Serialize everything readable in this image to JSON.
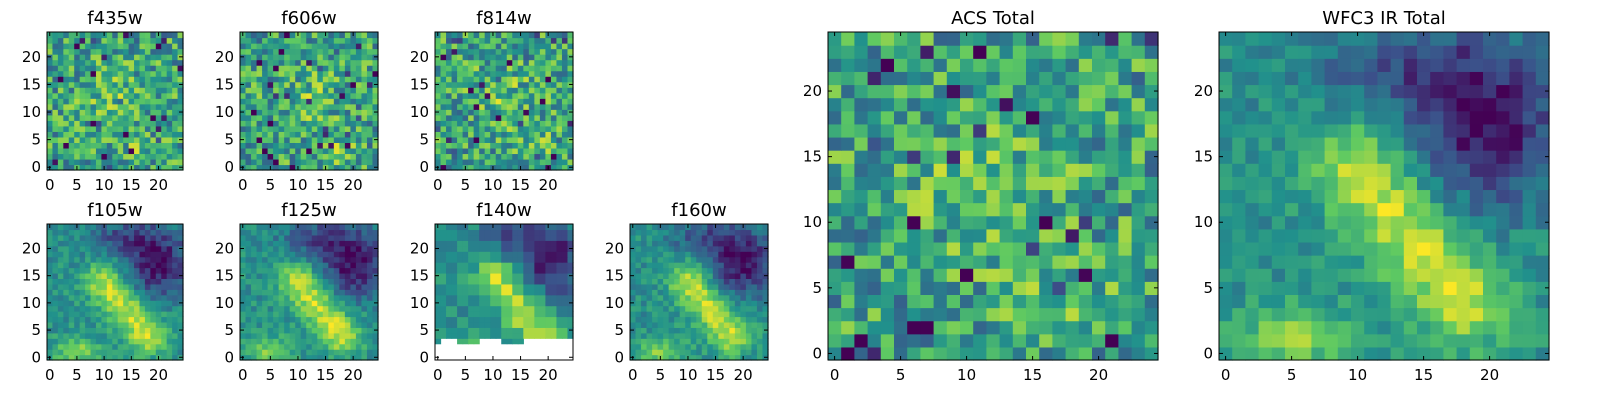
{
  "chart_data": [
    {
      "type": "heatmap",
      "title": "f435w",
      "xlim": [
        0,
        24
      ],
      "ylim": [
        0,
        24
      ],
      "xticks": [
        "0",
        "5",
        "10",
        "15",
        "20"
      ],
      "yticks": [
        "0",
        "5",
        "10",
        "15",
        "20"
      ],
      "seed": 11,
      "pattern": "acs"
    },
    {
      "type": "heatmap",
      "title": "f606w",
      "xlim": [
        0,
        24
      ],
      "ylim": [
        0,
        24
      ],
      "xticks": [
        "0",
        "5",
        "10",
        "15",
        "20"
      ],
      "yticks": [
        "0",
        "5",
        "10",
        "15",
        "20"
      ],
      "seed": 23,
      "pattern": "acs"
    },
    {
      "type": "heatmap",
      "title": "f814w",
      "xlim": [
        0,
        24
      ],
      "ylim": [
        0,
        24
      ],
      "xticks": [
        "0",
        "5",
        "10",
        "15",
        "20"
      ],
      "yticks": [
        "0",
        "5",
        "10",
        "15",
        "20"
      ],
      "seed": 37,
      "pattern": "acs"
    },
    {
      "type": "heatmap",
      "title": "f105w",
      "xlim": [
        0,
        24
      ],
      "ylim": [
        0,
        24
      ],
      "xticks": [
        "0",
        "5",
        "10",
        "15",
        "20"
      ],
      "yticks": [
        "0",
        "5",
        "10",
        "15",
        "20"
      ],
      "seed": 41,
      "pattern": "ir"
    },
    {
      "type": "heatmap",
      "title": "f125w",
      "xlim": [
        0,
        24
      ],
      "ylim": [
        0,
        24
      ],
      "xticks": [
        "0",
        "5",
        "10",
        "15",
        "20"
      ],
      "yticks": [
        "0",
        "5",
        "10",
        "15",
        "20"
      ],
      "seed": 53,
      "pattern": "ir"
    },
    {
      "type": "heatmap",
      "title": "f140w",
      "xlim": [
        0,
        24
      ],
      "ylim": [
        0,
        24
      ],
      "xticks": [
        "0",
        "5",
        "10",
        "15",
        "20"
      ],
      "yticks": [
        "0",
        "5",
        "10",
        "15",
        "20"
      ],
      "seed": 67,
      "pattern": "ir",
      "blocky": true,
      "masked_below_row": 4
    },
    {
      "type": "heatmap",
      "title": "f160w",
      "xlim": [
        0,
        24
      ],
      "ylim": [
        0,
        24
      ],
      "xticks": [
        "0",
        "5",
        "10",
        "15",
        "20"
      ],
      "yticks": [
        "0",
        "5",
        "10",
        "15",
        "20"
      ],
      "seed": 79,
      "pattern": "ir"
    },
    {
      "type": "heatmap",
      "title": "ACS Total",
      "xlim": [
        0,
        24
      ],
      "ylim": [
        0,
        24
      ],
      "xticks": [
        "0",
        "5",
        "10",
        "15",
        "20"
      ],
      "yticks": [
        "0",
        "5",
        "10",
        "15",
        "20"
      ],
      "seed": 91,
      "pattern": "acs"
    },
    {
      "type": "heatmap",
      "title": "WFC3 IR Total",
      "xlim": [
        0,
        24
      ],
      "ylim": [
        0,
        24
      ],
      "xticks": [
        "0",
        "5",
        "10",
        "15",
        "20"
      ],
      "yticks": [
        "0",
        "5",
        "10",
        "15",
        "20"
      ],
      "seed": 103,
      "pattern": "ir"
    }
  ],
  "colormap": [
    "#440154",
    "#3b528b",
    "#21918c",
    "#5ec962",
    "#fde725"
  ]
}
